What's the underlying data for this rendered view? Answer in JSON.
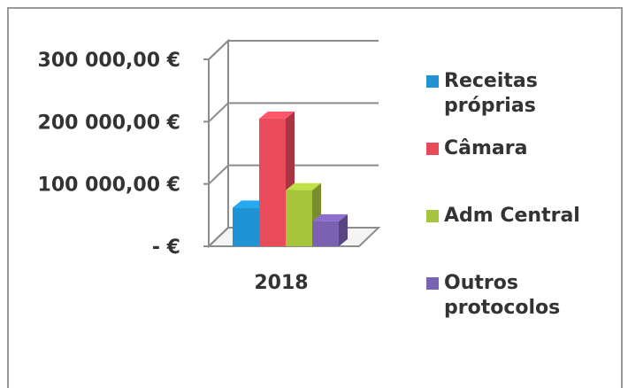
{
  "chart_data": {
    "type": "bar",
    "style": "3d-clustered-column",
    "categories": [
      "2018"
    ],
    "series": [
      {
        "name": "Receitas próprias",
        "values": [
          62000
        ],
        "color": "#1F93D3"
      },
      {
        "name": "Câmara",
        "values": [
          205000
        ],
        "color": "#E94B5B"
      },
      {
        "name": "Adm Central",
        "values": [
          90000
        ],
        "color": "#A6C43C"
      },
      {
        "name": "Outros protocolos",
        "values": [
          40000
        ],
        "color": "#7B61B2"
      }
    ],
    "y_ticks": [
      {
        "value": 300000,
        "label": "300 000,00 €"
      },
      {
        "value": 200000,
        "label": "200 000,00 €"
      },
      {
        "value": 100000,
        "label": "100 000,00 €"
      },
      {
        "value": 0,
        "label": "-   €"
      }
    ],
    "ylim": [
      0,
      300000
    ],
    "grid": true,
    "legend_position": "right"
  }
}
